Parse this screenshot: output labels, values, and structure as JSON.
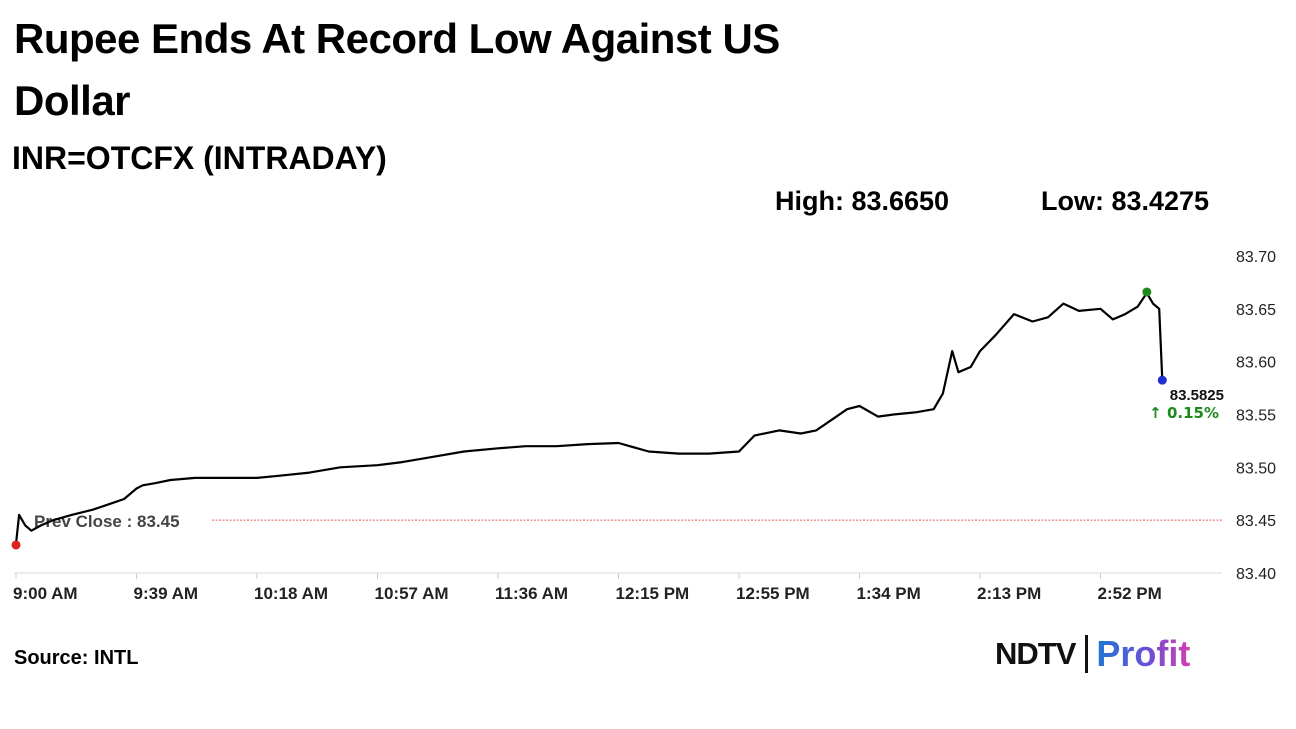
{
  "title": "Rupee Ends At Record Low Against US Dollar",
  "subtitle": "INR=OTCFX (INTRADAY)",
  "high_label": "High: 83.6650",
  "low_label": "Low: 83.4275",
  "source": "Source: INTL",
  "logo": {
    "left": "NDTV",
    "right": "Profit"
  },
  "colors": {
    "line": "#000000",
    "prev_close": "#e05a5a",
    "high_dot": "#1e8a1e",
    "low_dot": "#e02020",
    "last_dot": "#1f2fd0",
    "change": "#1e8a1e"
  },
  "chart_data": {
    "type": "line",
    "title": "INR=OTCFX (INTRADAY)",
    "xlabel": "",
    "ylabel": "",
    "ylim": [
      83.4,
      83.7
    ],
    "yticks": [
      "83.70",
      "83.65",
      "83.60",
      "83.55",
      "83.50",
      "83.45",
      "83.40"
    ],
    "xticks": [
      "9:00 AM",
      "9:39 AM",
      "10:18 AM",
      "10:57 AM",
      "11:36 AM",
      "12:15 PM",
      "12:55 PM",
      "1:34 PM",
      "2:13 PM",
      "2:52 PM"
    ],
    "prev_close": 83.45,
    "prev_close_label": "Prev Close : 83.45",
    "last_value_label": "83.5825",
    "change_label": "↑ 0.15%",
    "series": [
      {
        "x": [
          "9:00 AM",
          "9:01 AM",
          "9:03 AM",
          "9:05 AM",
          "9:08 AM",
          "9:12 AM",
          "9:18 AM",
          "9:25 AM",
          "9:30 AM",
          "9:35 AM",
          "9:39 AM",
          "9:41 AM",
          "9:45 AM",
          "9:50 AM",
          "9:58 AM",
          "10:08 AM",
          "10:18 AM",
          "10:25 AM",
          "10:35 AM",
          "10:45 AM",
          "10:57 AM",
          "11:05 AM",
          "11:15 AM",
          "11:25 AM",
          "11:36 AM",
          "11:45 AM",
          "11:55 AM",
          "12:05 PM",
          "12:15 PM",
          "12:25 PM",
          "12:35 PM",
          "12:45 PM",
          "12:55 PM",
          "1:00 PM",
          "1:08 PM",
          "1:15 PM",
          "1:20 PM",
          "1:25 PM",
          "1:30 PM",
          "1:34 PM",
          "1:40 PM",
          "1:45 PM",
          "1:52 PM",
          "1:58 PM",
          "2:01 PM",
          "2:04 PM",
          "2:06 PM",
          "2:10 PM",
          "2:13 PM",
          "2:18 PM",
          "2:24 PM",
          "2:30 PM",
          "2:35 PM",
          "2:40 PM",
          "2:45 PM",
          "2:52 PM",
          "2:56 PM",
          "3:00 PM",
          "3:04 PM",
          "3:07 PM",
          "3:09 PM",
          "3:11 PM",
          "3:12 PM"
        ],
        "values": [
          83.4275,
          83.455,
          83.445,
          83.44,
          83.445,
          83.45,
          83.455,
          83.46,
          83.465,
          83.47,
          83.48,
          83.483,
          83.485,
          83.488,
          83.49,
          83.49,
          83.49,
          83.492,
          83.495,
          83.5,
          83.502,
          83.505,
          83.51,
          83.515,
          83.518,
          83.52,
          83.52,
          83.522,
          83.523,
          83.515,
          83.513,
          83.513,
          83.515,
          83.53,
          83.535,
          83.532,
          83.535,
          83.545,
          83.555,
          83.558,
          83.548,
          83.55,
          83.552,
          83.555,
          83.57,
          83.61,
          83.59,
          83.595,
          83.61,
          83.625,
          83.645,
          83.638,
          83.642,
          83.655,
          83.648,
          83.65,
          83.64,
          83.645,
          83.652,
          83.665,
          83.655,
          83.65,
          83.5825
        ]
      }
    ]
  }
}
